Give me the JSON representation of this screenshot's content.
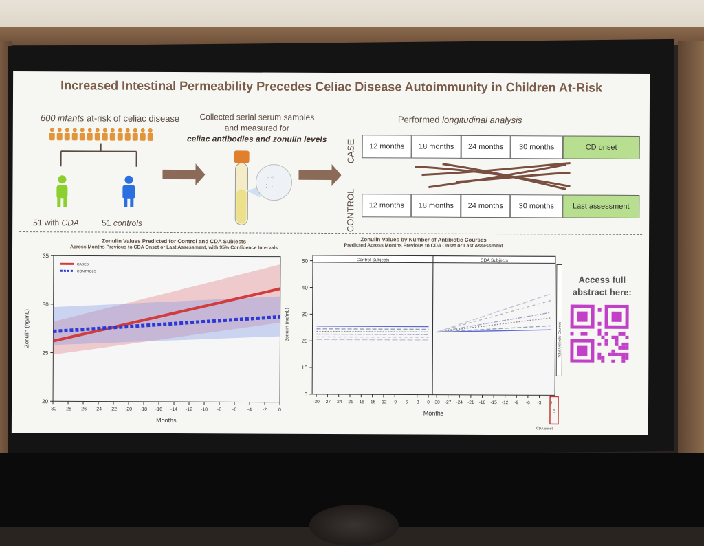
{
  "title": "Increased Intestinal Permeability Precedes Celiac Disease Autoimmunity in Children At-Risk",
  "infants": {
    "prefix": "600 infants",
    "suffix": " at-risk of celiac disease",
    "cda_prefix": "51 with ",
    "cda_em": "CDA",
    "controls_prefix": "51 ",
    "controls_em": "controls"
  },
  "collection": {
    "line1": "Collected serial serum samples",
    "line2": "and measured for",
    "line3": "celiac antibodies and zonulin levels"
  },
  "longitudinal": {
    "prefix": "Performed ",
    "em": "longitudinal analysis"
  },
  "case_label": "CASE",
  "control_label": "CONTROL",
  "case_timeline": [
    "12 months",
    "18 months",
    "24 months",
    "30 months",
    "CD onset"
  ],
  "control_timeline": [
    "12 months",
    "18 months",
    "24 months",
    "30 months",
    "Last assessment"
  ],
  "left_chart": {
    "title": "Zonulin Values Predicted for Control and CDA Subjects",
    "subtitle": "Across Months Previous to CDA Onset or Last Assessment, with 95% Confidence Intervals",
    "ylabel": "Zonulin (ng/mL)",
    "xlabel": "Months",
    "legend_cases": "CASES",
    "legend_controls": "CONTROLS"
  },
  "right_chart": {
    "title": "Zonulin Values by Number of Antibiotic Courses",
    "subtitle": "Predicted Across Months Previous to CDA Onset or Last Assessment",
    "ylabel": "Zonulin (ng/mL)",
    "xlabel": "Months",
    "panel_control": "Control Subjects",
    "panel_cda": "CDA Subjects",
    "side_label": "Total Antibiotic Courses",
    "side_value": "0",
    "onset_label": "CDA onset"
  },
  "qr": {
    "line1": "Access full",
    "line2": "abstract here:",
    "color": "#c23fc8"
  },
  "colors": {
    "cases": "#d23c3c",
    "controls": "#2b3ad6",
    "green": "#b7df8f",
    "arrow": "#8b6a5a"
  },
  "chart_data": [
    {
      "type": "line",
      "title": "Zonulin Values Predicted for Control and CDA Subjects",
      "subtitle": "Across Months Previous to CDA Onset or Last Assessment, with 95% Confidence Intervals",
      "xlabel": "Months",
      "ylabel": "Zonulin (ng/mL)",
      "x_ticks": [
        -30,
        -28,
        -26,
        -24,
        -22,
        -20,
        -18,
        -16,
        -14,
        -12,
        -10,
        -8,
        -6,
        -4,
        -2,
        0
      ],
      "y_ticks": [
        20,
        25,
        30,
        35
      ],
      "xlim": [
        -30,
        0
      ],
      "ylim": [
        20,
        35
      ],
      "legend": "top-left",
      "series": [
        {
          "name": "CASES",
          "x": [
            -30,
            0
          ],
          "values": [
            26.2,
            31.7
          ],
          "ci_lower": [
            24.8,
            28.2
          ],
          "ci_upper": [
            28.2,
            34.2
          ]
        },
        {
          "name": "CONTROLS",
          "x": [
            -30,
            0
          ],
          "values": [
            27.2,
            28.8
          ],
          "ci_lower": [
            25.8,
            26.8
          ],
          "ci_upper": [
            29.7,
            30.9
          ]
        }
      ]
    },
    {
      "type": "line",
      "title": "Zonulin Values by Number of Antibiotic Courses",
      "subtitle": "Predicted Across Months Previous to CDA Onset or Last Assessment",
      "xlabel": "Months",
      "ylabel": "Zonulin (ng/mL)",
      "x_ticks": [
        -30,
        -27,
        -24,
        -21,
        -18,
        -15,
        -12,
        -9,
        -6,
        -3,
        0
      ],
      "y_ticks": [
        0,
        10,
        20,
        30,
        40,
        50
      ],
      "ylim": [
        0,
        52
      ],
      "panels": [
        {
          "name": "Control Subjects",
          "series": [
            {
              "x": [
                -30,
                0
              ],
              "values": [
                25.5,
                25.5
              ]
            },
            {
              "x": [
                -30,
                0
              ],
              "values": [
                24.5,
                24.5
              ]
            },
            {
              "x": [
                -30,
                0
              ],
              "values": [
                23.5,
                23.5
              ]
            },
            {
              "x": [
                -30,
                0
              ],
              "values": [
                22.5,
                22.5
              ]
            },
            {
              "x": [
                -30,
                0
              ],
              "values": [
                21.5,
                21.5
              ]
            },
            {
              "x": [
                -30,
                0
              ],
              "values": [
                20.5,
                20.5
              ]
            }
          ]
        },
        {
          "name": "CDA Subjects",
          "series": [
            {
              "x": [
                -30,
                0
              ],
              "values": [
                23.5,
                24.5
              ]
            },
            {
              "x": [
                -30,
                0
              ],
              "values": [
                23.5,
                26
              ]
            },
            {
              "x": [
                -30,
                0
              ],
              "values": [
                23.5,
                29
              ]
            },
            {
              "x": [
                -30,
                0
              ],
              "values": [
                23.5,
                31
              ]
            },
            {
              "x": [
                -30,
                0
              ],
              "values": [
                23.5,
                35.5
              ]
            },
            {
              "x": [
                -30,
                0
              ],
              "values": [
                23.5,
                38
              ]
            }
          ]
        }
      ]
    }
  ]
}
